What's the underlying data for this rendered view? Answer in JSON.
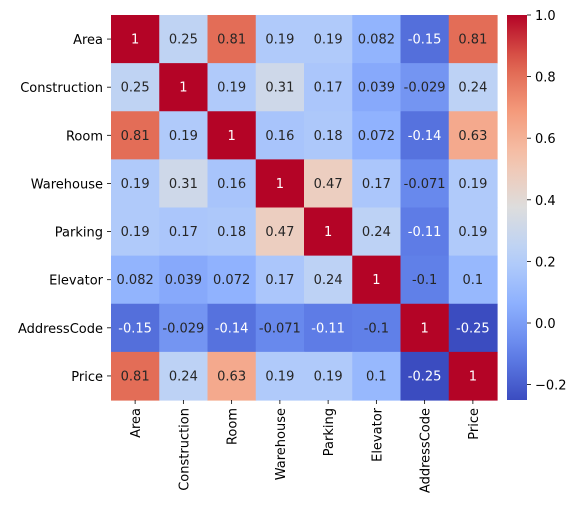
{
  "chart_data": {
    "type": "heatmap",
    "title": "",
    "xlabel": "",
    "ylabel": "",
    "rows": [
      "Area",
      "Construction",
      "Room",
      "Warehouse",
      "Parking",
      "Elevator",
      "AddressCode",
      "Price"
    ],
    "columns": [
      "Area",
      "Construction",
      "Room",
      "Warehouse",
      "Parking",
      "Elevator",
      "AddressCode",
      "Price"
    ],
    "values": [
      [
        1,
        0.25,
        0.81,
        0.19,
        0.19,
        0.082,
        -0.15,
        0.81
      ],
      [
        0.25,
        1,
        0.19,
        0.31,
        0.17,
        0.039,
        -0.029,
        0.24
      ],
      [
        0.81,
        0.19,
        1,
        0.16,
        0.18,
        0.072,
        -0.14,
        0.63
      ],
      [
        0.19,
        0.31,
        0.16,
        1,
        0.47,
        0.17,
        -0.071,
        0.19
      ],
      [
        0.19,
        0.17,
        0.18,
        0.47,
        1,
        0.24,
        -0.11,
        0.19
      ],
      [
        0.082,
        0.039,
        0.072,
        0.17,
        0.24,
        1,
        -0.1,
        0.1
      ],
      [
        -0.15,
        -0.029,
        -0.14,
        -0.071,
        -0.11,
        -0.1,
        1,
        -0.25
      ],
      [
        0.81,
        0.24,
        0.63,
        0.19,
        0.19,
        0.1,
        -0.25,
        1
      ]
    ],
    "annotations": [
      [
        "1",
        "0.25",
        "0.81",
        "0.19",
        "0.19",
        "0.082",
        "-0.15",
        "0.81"
      ],
      [
        "0.25",
        "1",
        "0.19",
        "0.31",
        "0.17",
        "0.039",
        "-0.029",
        "0.24"
      ],
      [
        "0.81",
        "0.19",
        "1",
        "0.16",
        "0.18",
        "0.072",
        "-0.14",
        "0.63"
      ],
      [
        "0.19",
        "0.31",
        "0.16",
        "1",
        "0.47",
        "0.17",
        "-0.071",
        "0.19"
      ],
      [
        "0.19",
        "0.17",
        "0.18",
        "0.47",
        "1",
        "0.24",
        "-0.11",
        "0.19"
      ],
      [
        "0.082",
        "0.039",
        "0.072",
        "0.17",
        "0.24",
        "1",
        "-0.1",
        "0.1"
      ],
      [
        "-0.15",
        "-0.029",
        "-0.14",
        "-0.071",
        "-0.11",
        "-0.1",
        "1",
        "-0.25"
      ],
      [
        "0.81",
        "0.24",
        "0.63",
        "0.19",
        "0.19",
        "0.1",
        "-0.25",
        "1"
      ]
    ],
    "colormap": "coolwarm",
    "color_range": [
      -0.25,
      1
    ],
    "colorbar": {
      "ticks": [
        -0.2,
        0.0,
        0.2,
        0.4,
        0.6,
        0.8,
        1.0
      ],
      "tick_labels": [
        "−0.2",
        "0.0",
        "0.2",
        "0.4",
        "0.6",
        "0.8",
        "1.0"
      ]
    },
    "grid": false
  }
}
